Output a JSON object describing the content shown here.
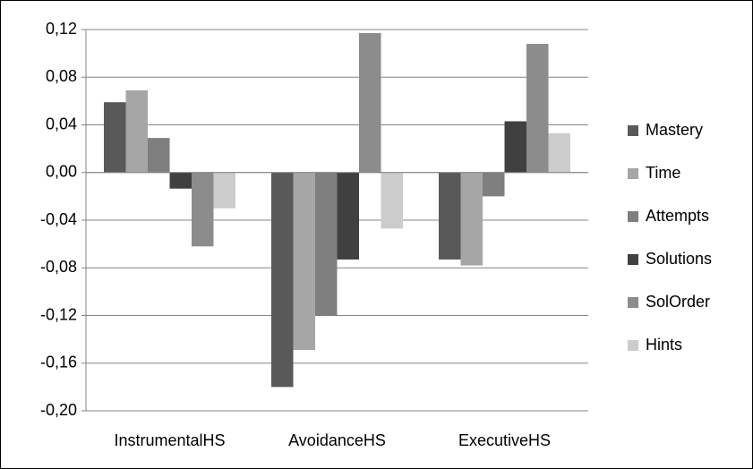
{
  "chart_data": {
    "type": "bar",
    "categories": [
      "InstrumentalHS",
      "AvoidanceHS",
      "ExecutiveHS"
    ],
    "series": [
      {
        "name": "Mastery",
        "color": "#595959",
        "values": [
          0.059,
          -0.18,
          -0.073
        ]
      },
      {
        "name": "Time",
        "color": "#a6a6a6",
        "values": [
          0.069,
          -0.149,
          -0.078
        ]
      },
      {
        "name": "Attempts",
        "color": "#7f7f7f",
        "values": [
          0.029,
          -0.12,
          -0.02
        ]
      },
      {
        "name": "Solutions",
        "color": "#404040",
        "values": [
          -0.0135,
          -0.073,
          0.043
        ]
      },
      {
        "name": "SolOrder",
        "color": "#8c8c8c",
        "values": [
          -0.062,
          0.117,
          0.108
        ]
      },
      {
        "name": "Hints",
        "color": "#cccccc",
        "values": [
          -0.03,
          -0.047,
          0.033
        ]
      }
    ],
    "ylim": [
      -0.2,
      0.12
    ],
    "yticks": [
      {
        "value": -0.2,
        "label": "-0,20"
      },
      {
        "value": -0.16,
        "label": "-0,16"
      },
      {
        "value": -0.12,
        "label": "-0,12"
      },
      {
        "value": -0.08,
        "label": "-0,08"
      },
      {
        "value": -0.04,
        "label": "-0,04"
      },
      {
        "value": 0,
        "label": "0,00"
      },
      {
        "value": 0.04,
        "label": "0,04"
      },
      {
        "value": 0.08,
        "label": "0,08"
      },
      {
        "value": 0.12,
        "label": "0,12"
      }
    ],
    "grid": true,
    "legend": "right"
  }
}
